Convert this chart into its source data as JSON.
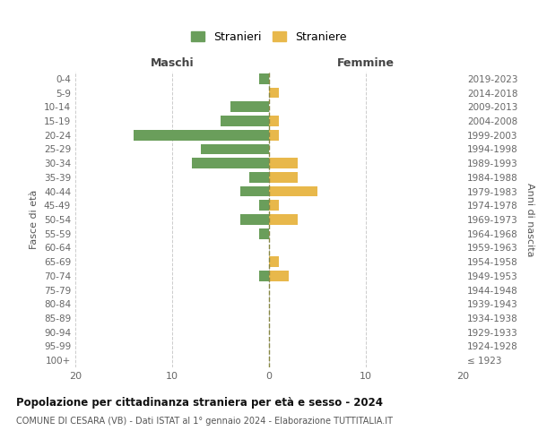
{
  "age_groups": [
    "100+",
    "95-99",
    "90-94",
    "85-89",
    "80-84",
    "75-79",
    "70-74",
    "65-69",
    "60-64",
    "55-59",
    "50-54",
    "45-49",
    "40-44",
    "35-39",
    "30-34",
    "25-29",
    "20-24",
    "15-19",
    "10-14",
    "5-9",
    "0-4"
  ],
  "birth_years": [
    "≤ 1923",
    "1924-1928",
    "1929-1933",
    "1934-1938",
    "1939-1943",
    "1944-1948",
    "1949-1953",
    "1954-1958",
    "1959-1963",
    "1964-1968",
    "1969-1973",
    "1974-1978",
    "1979-1983",
    "1984-1988",
    "1989-1993",
    "1994-1998",
    "1999-2003",
    "2004-2008",
    "2009-2013",
    "2014-2018",
    "2019-2023"
  ],
  "males": [
    0,
    0,
    0,
    0,
    0,
    0,
    1,
    0,
    0,
    1,
    3,
    1,
    3,
    2,
    8,
    7,
    14,
    5,
    4,
    0,
    1
  ],
  "females": [
    0,
    0,
    0,
    0,
    0,
    0,
    2,
    1,
    0,
    0,
    3,
    1,
    5,
    3,
    3,
    0,
    1,
    1,
    0,
    1,
    0
  ],
  "xlim": 20,
  "male_color": "#6a9e5b",
  "female_color": "#e8b84b",
  "centerline_color": "#888844",
  "grid_color": "#cccccc",
  "bg_color": "#ffffff",
  "title": "Popolazione per cittadinanza straniera per età e sesso - 2024",
  "subtitle": "COMUNE DI CESARA (VB) - Dati ISTAT al 1° gennaio 2024 - Elaborazione TUTTITALIA.IT",
  "legend_maschi": "Stranieri",
  "legend_femmine": "Straniere",
  "xlabel_left": "Maschi",
  "xlabel_right": "Femmine",
  "ylabel_left": "Fasce di età",
  "ylabel_right": "Anni di nascita"
}
